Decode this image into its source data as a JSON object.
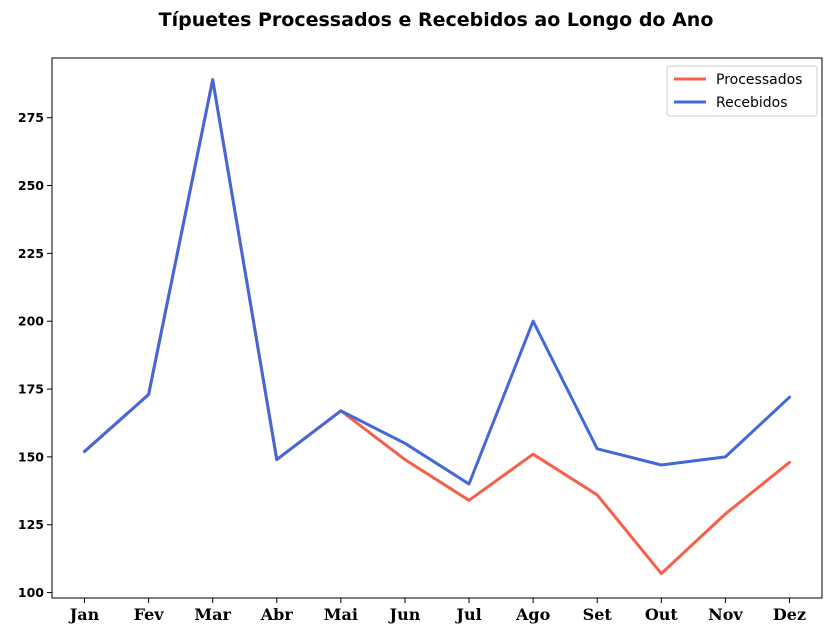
{
  "chart_data": {
    "type": "line",
    "title": "Típuetes Processados e Recebidos ao Longo do Ano",
    "xlabel": "",
    "ylabel": "",
    "categories": [
      "Jan",
      "Fev",
      "Mar",
      "Abr",
      "Mai",
      "Jun",
      "Jul",
      "Ago",
      "Set",
      "Out",
      "Nov",
      "Dez"
    ],
    "yticks": [
      100,
      125,
      150,
      175,
      200,
      225,
      250,
      275
    ],
    "ylim": [
      98,
      297
    ],
    "grid": false,
    "legend_position": "top-right",
    "series": [
      {
        "name": "Processados",
        "color": "#f4604a",
        "values": [
          152,
          173,
          289,
          149,
          167,
          149,
          134,
          151,
          136,
          107,
          129,
          148
        ]
      },
      {
        "name": "Recebidos",
        "color": "#4468d8",
        "values": [
          152,
          173,
          289,
          149,
          167,
          155,
          140,
          200,
          153,
          147,
          150,
          172
        ]
      }
    ]
  }
}
